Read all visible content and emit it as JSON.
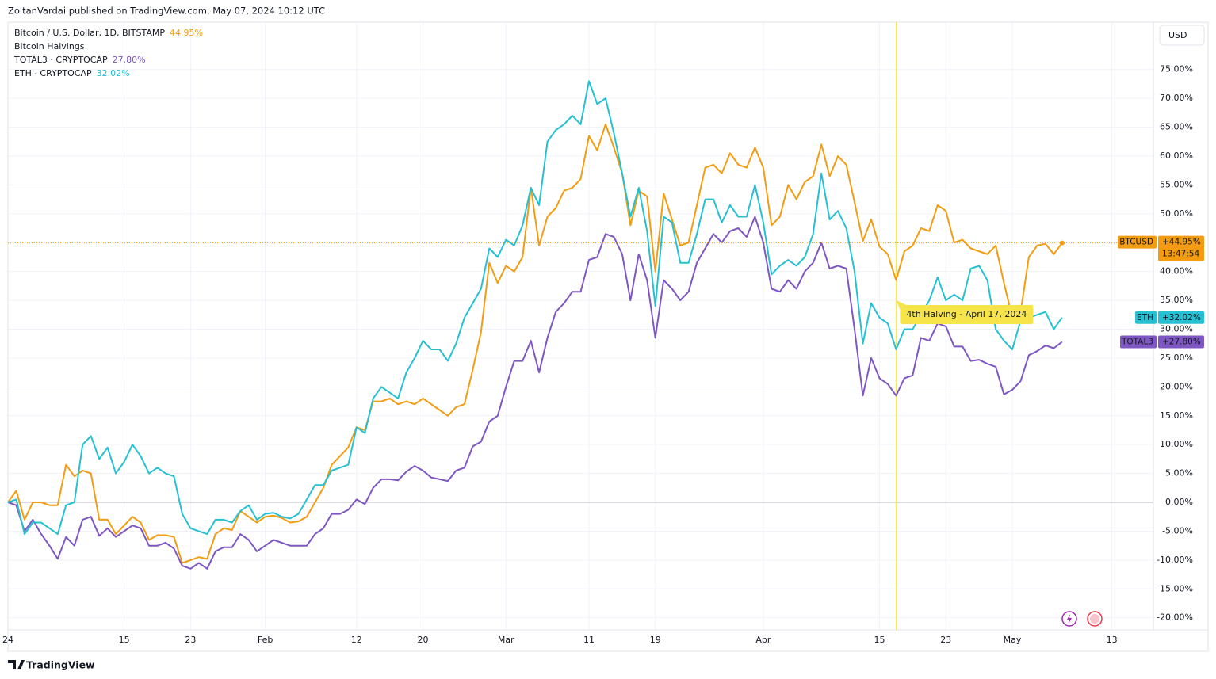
{
  "header": "ZoltanVardai published on TradingView.com, May 07, 2024 10:12 UTC",
  "currency_button": "USD",
  "footer_brand": "TradingView",
  "chart_data": {
    "type": "line",
    "indicator": "Bitcoin Halvings",
    "annotations": [
      {
        "x": "2024-04-17",
        "text": "4th Halving - April 17, 2024",
        "color": "#f7e44a"
      }
    ],
    "x": [
      "2024-01-01",
      "2024-01-02",
      "2024-01-03",
      "2024-01-04",
      "2024-01-05",
      "2024-01-06",
      "2024-01-07",
      "2024-01-08",
      "2024-01-09",
      "2024-01-10",
      "2024-01-11",
      "2024-01-12",
      "2024-01-13",
      "2024-01-14",
      "2024-01-15",
      "2024-01-16",
      "2024-01-17",
      "2024-01-18",
      "2024-01-19",
      "2024-01-20",
      "2024-01-21",
      "2024-01-22",
      "2024-01-23",
      "2024-01-24",
      "2024-01-25",
      "2024-01-26",
      "2024-01-27",
      "2024-01-28",
      "2024-01-29",
      "2024-01-30",
      "2024-01-31",
      "2024-02-01",
      "2024-02-02",
      "2024-02-03",
      "2024-02-04",
      "2024-02-05",
      "2024-02-06",
      "2024-02-07",
      "2024-02-08",
      "2024-02-09",
      "2024-02-10",
      "2024-02-11",
      "2024-02-12",
      "2024-02-13",
      "2024-02-14",
      "2024-02-15",
      "2024-02-16",
      "2024-02-17",
      "2024-02-18",
      "2024-02-19",
      "2024-02-20",
      "2024-02-21",
      "2024-02-22",
      "2024-02-23",
      "2024-02-24",
      "2024-02-25",
      "2024-02-26",
      "2024-02-27",
      "2024-02-28",
      "2024-02-29",
      "2024-03-01",
      "2024-03-02",
      "2024-03-03",
      "2024-03-04",
      "2024-03-05",
      "2024-03-06",
      "2024-03-07",
      "2024-03-08",
      "2024-03-09",
      "2024-03-10",
      "2024-03-11",
      "2024-03-12",
      "2024-03-13",
      "2024-03-14",
      "2024-03-15",
      "2024-03-16",
      "2024-03-17",
      "2024-03-18",
      "2024-03-19",
      "2024-03-20",
      "2024-03-21",
      "2024-03-22",
      "2024-03-23",
      "2024-03-24",
      "2024-03-25",
      "2024-03-26",
      "2024-03-27",
      "2024-03-28",
      "2024-03-29",
      "2024-03-30",
      "2024-03-31",
      "2024-04-01",
      "2024-04-02",
      "2024-04-03",
      "2024-04-04",
      "2024-04-05",
      "2024-04-06",
      "2024-04-07",
      "2024-04-08",
      "2024-04-09",
      "2024-04-10",
      "2024-04-11",
      "2024-04-12",
      "2024-04-13",
      "2024-04-14",
      "2024-04-15",
      "2024-04-16",
      "2024-04-17",
      "2024-04-18",
      "2024-04-19",
      "2024-04-20",
      "2024-04-21",
      "2024-04-22",
      "2024-04-23",
      "2024-04-24",
      "2024-04-25",
      "2024-04-26",
      "2024-04-27",
      "2024-04-28",
      "2024-04-29",
      "2024-04-30",
      "2024-05-01",
      "2024-05-02",
      "2024-05-03",
      "2024-05-04",
      "2024-05-05",
      "2024-05-06",
      "2024-05-07"
    ],
    "series": [
      {
        "name": "Bitcoin / U.S. Dollar, 1D, BITSTAMP",
        "tag": "BTCUSD",
        "legend_value_label": "44.95%",
        "axis_value_label": "+44.95%",
        "countdown": "13:47:54",
        "color": "#f39c12",
        "values": [
          0,
          2,
          -3,
          0,
          0,
          -0.5,
          -0.5,
          6.5,
          4.5,
          5.5,
          5,
          -3,
          -3,
          -5.5,
          -4,
          -2.5,
          -3.5,
          -6.5,
          -5.7,
          -5.7,
          -6,
          -10.5,
          -10,
          -9.5,
          -9.8,
          -5.5,
          -4.5,
          -4.8,
          -1.5,
          -2.5,
          -3.5,
          -2.5,
          -2.3,
          -2.7,
          -3.5,
          -3.3,
          -2.5,
          0,
          2.5,
          6.5,
          8,
          9.5,
          13,
          12.5,
          17.5,
          17.5,
          18,
          17,
          17.5,
          17,
          18,
          17,
          16,
          15,
          16.5,
          17,
          23,
          29.5,
          41.5,
          38,
          41,
          40,
          42.5,
          54.5,
          44.5,
          49.5,
          51,
          54,
          54.5,
          56,
          63.5,
          61,
          65.5,
          61.5,
          57,
          48,
          54,
          53,
          40,
          53.5,
          49,
          44.5,
          45,
          51.5,
          58,
          58.5,
          57,
          60.5,
          58.5,
          58,
          61.5,
          58,
          48,
          49.5,
          55,
          52.5,
          55.5,
          56.5,
          62,
          56.5,
          60,
          58.5,
          52,
          45.3,
          49,
          44.3,
          43,
          38.5,
          43.5,
          44.5,
          47.5,
          47,
          51.5,
          50.5,
          45,
          45.5,
          44,
          43.5,
          43,
          44.5,
          38,
          32,
          33,
          42.5,
          44.5,
          44.8,
          43,
          44.95
        ]
      },
      {
        "name": "TOTAL3 · CRYPTOCAP",
        "tag": "TOTAL3",
        "legend_value_label": "27.80%",
        "axis_value_label": "+27.80%",
        "color": "#7e57c2",
        "values": [
          0,
          -0.5,
          -5,
          -3,
          -5.5,
          -7.5,
          -9.8,
          -6,
          -7.5,
          -3,
          -2.5,
          -5.8,
          -4.5,
          -6,
          -5,
          -4,
          -4.5,
          -7.5,
          -7.5,
          -7,
          -8,
          -11,
          -11.5,
          -10.5,
          -11.5,
          -8.5,
          -7.8,
          -7.8,
          -5.5,
          -6.5,
          -8.5,
          -7.5,
          -6.5,
          -7,
          -7.5,
          -7.5,
          -7.5,
          -5.5,
          -4.5,
          -2,
          -2,
          -1.3,
          0.5,
          -0.3,
          2.5,
          4,
          4,
          3.8,
          5.3,
          6.3,
          5.5,
          4.3,
          4,
          3.7,
          5.5,
          6,
          9.7,
          10.5,
          14,
          15,
          20,
          24.5,
          24.5,
          28,
          22.5,
          28.5,
          33,
          34.5,
          36.5,
          36.5,
          42,
          42.5,
          46.5,
          46,
          43,
          35,
          43,
          38.5,
          28.5,
          38.5,
          37,
          35,
          36.5,
          41.5,
          44,
          46.5,
          45,
          47,
          47.5,
          46,
          49.5,
          45,
          37,
          36.5,
          38.5,
          37,
          40,
          41.5,
          45,
          40.5,
          41,
          40.5,
          30,
          18.5,
          25,
          21.5,
          20.5,
          18.5,
          21.5,
          22,
          28.5,
          28,
          31,
          30.5,
          27,
          27,
          24.5,
          24.7,
          24,
          23.5,
          18.7,
          19.5,
          21,
          25.5,
          26.2,
          27.2,
          26.7,
          27.8
        ]
      },
      {
        "name": "ETH · CRYPTOCAP",
        "tag": "ETH",
        "legend_value_label": "32.02%",
        "axis_value_label": "+32.02%",
        "color": "#26c0d3",
        "values": [
          0,
          0.5,
          -5.5,
          -3.5,
          -3.5,
          -4.5,
          -5.5,
          -0.5,
          0,
          10,
          11.5,
          7.5,
          9.5,
          5,
          7,
          10,
          8,
          5,
          6,
          5,
          4.5,
          -2,
          -4.5,
          -5,
          -5.5,
          -3,
          -3,
          -3.5,
          -1.5,
          -0.5,
          -3,
          -2,
          -1.8,
          -2.5,
          -2.8,
          -2,
          0.5,
          3,
          3,
          5.5,
          6,
          6.5,
          13,
          12,
          18,
          20,
          19,
          18,
          22.5,
          25,
          28,
          26.5,
          26.5,
          24.5,
          27.5,
          32,
          34.5,
          37,
          44,
          42.5,
          45.5,
          44.5,
          48,
          54.5,
          51.5,
          62.5,
          64.5,
          65.5,
          67,
          65.5,
          73,
          69,
          70,
          64,
          57,
          49.5,
          54.5,
          47,
          34,
          49.5,
          48.5,
          41.5,
          41.5,
          46.5,
          52.5,
          52.5,
          48.5,
          51.5,
          49.5,
          49.5,
          55,
          48.5,
          39.5,
          41,
          42,
          41,
          42.5,
          46.5,
          57,
          49,
          50.5,
          47.5,
          40,
          27.5,
          34.5,
          32,
          31,
          26.5,
          30,
          30,
          32.5,
          35,
          39,
          35,
          36,
          35,
          40.5,
          41,
          38.5,
          30,
          28,
          26.5,
          31.5,
          32,
          32.5,
          33,
          30,
          32.02
        ]
      }
    ],
    "xlim": [
      "2024-01-01",
      "2024-05-18"
    ],
    "xticks": [
      {
        "value": "2024-01-01",
        "label": "24"
      },
      {
        "value": "2024-01-15",
        "label": "15"
      },
      {
        "value": "2024-01-23",
        "label": "23"
      },
      {
        "value": "2024-02-01",
        "label": "Feb"
      },
      {
        "value": "2024-02-12",
        "label": "12"
      },
      {
        "value": "2024-02-20",
        "label": "20"
      },
      {
        "value": "2024-03-01",
        "label": "Mar"
      },
      {
        "value": "2024-03-11",
        "label": "11"
      },
      {
        "value": "2024-03-19",
        "label": "19"
      },
      {
        "value": "2024-04-01",
        "label": "Apr"
      },
      {
        "value": "2024-04-15",
        "label": "15"
      },
      {
        "value": "2024-04-23",
        "label": "23"
      },
      {
        "value": "2024-05-01",
        "label": "May"
      },
      {
        "value": "2024-05-13",
        "label": "13"
      }
    ],
    "ylim": [
      -22.1,
      83.2
    ],
    "yticks": [
      {
        "value": -20,
        "label": "-20.00%"
      },
      {
        "value": -15,
        "label": "-15.00%"
      },
      {
        "value": -10,
        "label": "-10.00%"
      },
      {
        "value": -5,
        "label": "-5.00%"
      },
      {
        "value": 0,
        "label": "0.00%"
      },
      {
        "value": 5,
        "label": "5.00%"
      },
      {
        "value": 10,
        "label": "10.00%"
      },
      {
        "value": 15,
        "label": "15.00%"
      },
      {
        "value": 20,
        "label": "20.00%"
      },
      {
        "value": 25,
        "label": "25.00%"
      },
      {
        "value": 30,
        "label": "30.00%"
      },
      {
        "value": 35,
        "label": "35.00%"
      },
      {
        "value": 40,
        "label": "40.00%"
      },
      {
        "value": 45,
        "label": "45.00%"
      },
      {
        "value": 50,
        "label": "50.00%"
      },
      {
        "value": 55,
        "label": "55.00%"
      },
      {
        "value": 60,
        "label": "60.00%"
      },
      {
        "value": 65,
        "label": "65.00%"
      },
      {
        "value": 70,
        "label": "70.00%"
      },
      {
        "value": 75,
        "label": "75.00%"
      }
    ],
    "grid": true
  }
}
